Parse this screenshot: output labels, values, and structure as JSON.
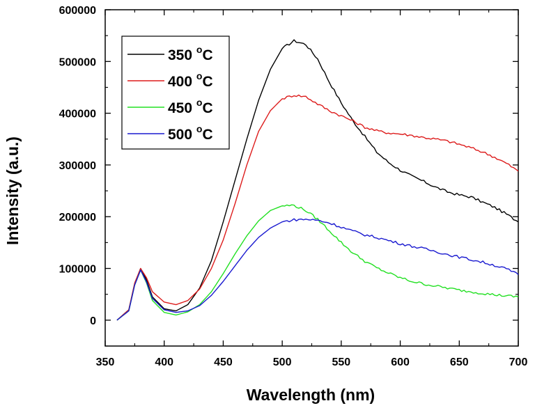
{
  "chart_data": {
    "type": "line",
    "title": "",
    "xlabel": "Wavelength (nm)",
    "ylabel": "Intensity (a.u.)",
    "xlim": [
      350,
      700
    ],
    "ylim": [
      -50000,
      600000
    ],
    "xticks": [
      350,
      400,
      450,
      500,
      550,
      600,
      650,
      700
    ],
    "yticks": [
      0,
      100000,
      200000,
      300000,
      400000,
      500000,
      600000
    ],
    "xtick_labels": [
      "350",
      "400",
      "450",
      "500",
      "550",
      "600",
      "650",
      "700"
    ],
    "ytick_labels": [
      "0",
      "100000",
      "200000",
      "300000",
      "400000",
      "500000",
      "600000"
    ],
    "grid": false,
    "legend_position": "top-left",
    "series": [
      {
        "name": "350 °C",
        "label_main": "350 ",
        "label_sup": "o",
        "label_unit": "C",
        "color": "#000000",
        "points": [
          [
            360,
            0
          ],
          [
            370,
            20000
          ],
          [
            375,
            70000
          ],
          [
            380,
            100000
          ],
          [
            385,
            78000
          ],
          [
            390,
            45000
          ],
          [
            400,
            22000
          ],
          [
            410,
            18000
          ],
          [
            420,
            30000
          ],
          [
            430,
            62000
          ],
          [
            440,
            115000
          ],
          [
            450,
            190000
          ],
          [
            460,
            270000
          ],
          [
            470,
            350000
          ],
          [
            480,
            425000
          ],
          [
            490,
            485000
          ],
          [
            500,
            525000
          ],
          [
            510,
            540000
          ],
          [
            520,
            533000
          ],
          [
            530,
            505000
          ],
          [
            540,
            460000
          ],
          [
            550,
            420000
          ],
          [
            560,
            385000
          ],
          [
            570,
            355000
          ],
          [
            580,
            325000
          ],
          [
            590,
            305000
          ],
          [
            600,
            290000
          ],
          [
            610,
            278000
          ],
          [
            620,
            268000
          ],
          [
            630,
            257000
          ],
          [
            640,
            248000
          ],
          [
            650,
            242000
          ],
          [
            660,
            238000
          ],
          [
            670,
            228000
          ],
          [
            680,
            218000
          ],
          [
            690,
            205000
          ],
          [
            700,
            190000
          ]
        ]
      },
      {
        "name": "400 °C",
        "label_main": "400 ",
        "label_sup": "o",
        "label_unit": "C",
        "color": "#dd1c1c",
        "points": [
          [
            360,
            0
          ],
          [
            370,
            20000
          ],
          [
            375,
            72000
          ],
          [
            380,
            100000
          ],
          [
            385,
            82000
          ],
          [
            390,
            55000
          ],
          [
            400,
            35000
          ],
          [
            410,
            30000
          ],
          [
            420,
            38000
          ],
          [
            430,
            60000
          ],
          [
            440,
            100000
          ],
          [
            450,
            155000
          ],
          [
            460,
            225000
          ],
          [
            470,
            300000
          ],
          [
            480,
            365000
          ],
          [
            490,
            405000
          ],
          [
            500,
            428000
          ],
          [
            510,
            435000
          ],
          [
            520,
            432000
          ],
          [
            530,
            418000
          ],
          [
            540,
            405000
          ],
          [
            550,
            395000
          ],
          [
            560,
            385000
          ],
          [
            570,
            373000
          ],
          [
            580,
            366000
          ],
          [
            590,
            362000
          ],
          [
            600,
            360000
          ],
          [
            610,
            357000
          ],
          [
            620,
            353000
          ],
          [
            630,
            350000
          ],
          [
            640,
            346000
          ],
          [
            650,
            340000
          ],
          [
            660,
            333000
          ],
          [
            670,
            325000
          ],
          [
            680,
            315000
          ],
          [
            690,
            303000
          ],
          [
            700,
            288000
          ]
        ]
      },
      {
        "name": "450 °C",
        "label_main": "450 ",
        "label_sup": "o",
        "label_unit": "C",
        "color": "#22e022",
        "points": [
          [
            360,
            0
          ],
          [
            370,
            18000
          ],
          [
            375,
            68000
          ],
          [
            380,
            97000
          ],
          [
            385,
            72000
          ],
          [
            390,
            38000
          ],
          [
            400,
            15000
          ],
          [
            410,
            10000
          ],
          [
            420,
            16000
          ],
          [
            430,
            30000
          ],
          [
            440,
            55000
          ],
          [
            450,
            90000
          ],
          [
            460,
            128000
          ],
          [
            470,
            163000
          ],
          [
            480,
            192000
          ],
          [
            490,
            212000
          ],
          [
            500,
            221000
          ],
          [
            510,
            222000
          ],
          [
            520,
            212000
          ],
          [
            530,
            195000
          ],
          [
            540,
            173000
          ],
          [
            550,
            150000
          ],
          [
            560,
            130000
          ],
          [
            570,
            114000
          ],
          [
            580,
            101000
          ],
          [
            590,
            91000
          ],
          [
            600,
            82000
          ],
          [
            610,
            75000
          ],
          [
            620,
            70000
          ],
          [
            630,
            66000
          ],
          [
            640,
            62000
          ],
          [
            650,
            58000
          ],
          [
            660,
            55000
          ],
          [
            670,
            52000
          ],
          [
            680,
            49000
          ],
          [
            690,
            47000
          ],
          [
            700,
            45000
          ]
        ]
      },
      {
        "name": "500 °C",
        "label_main": "500 ",
        "label_sup": "o",
        "label_unit": "C",
        "color": "#1a1ad0",
        "points": [
          [
            360,
            0
          ],
          [
            370,
            18000
          ],
          [
            375,
            68000
          ],
          [
            380,
            97000
          ],
          [
            385,
            74000
          ],
          [
            390,
            42000
          ],
          [
            400,
            20000
          ],
          [
            410,
            15000
          ],
          [
            420,
            18000
          ],
          [
            430,
            28000
          ],
          [
            440,
            48000
          ],
          [
            450,
            75000
          ],
          [
            460,
            105000
          ],
          [
            470,
            135000
          ],
          [
            480,
            160000
          ],
          [
            490,
            178000
          ],
          [
            500,
            190000
          ],
          [
            510,
            194000
          ],
          [
            520,
            195000
          ],
          [
            530,
            193000
          ],
          [
            540,
            188000
          ],
          [
            550,
            180000
          ],
          [
            560,
            172000
          ],
          [
            570,
            165000
          ],
          [
            580,
            160000
          ],
          [
            590,
            154000
          ],
          [
            600,
            148000
          ],
          [
            610,
            143000
          ],
          [
            620,
            138000
          ],
          [
            630,
            133000
          ],
          [
            640,
            127000
          ],
          [
            650,
            122000
          ],
          [
            660,
            117000
          ],
          [
            670,
            112000
          ],
          [
            680,
            106000
          ],
          [
            690,
            99000
          ],
          [
            700,
            88000
          ]
        ]
      }
    ]
  }
}
